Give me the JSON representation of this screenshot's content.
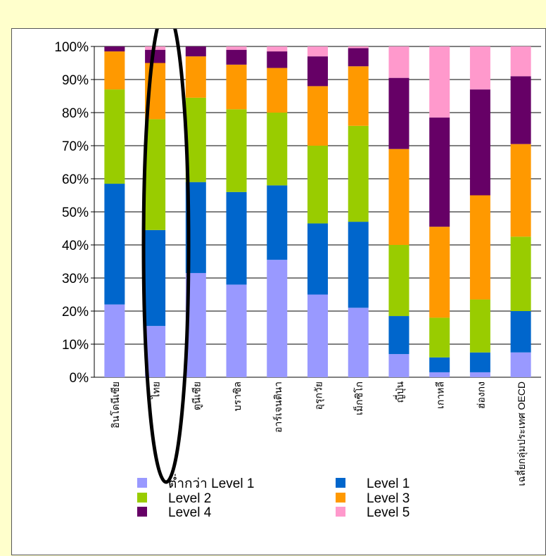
{
  "chart_data": {
    "type": "bar",
    "stacked": true,
    "percent": true,
    "categories": [
      "อินโดนีเซีย",
      "ไทย",
      "ตูนีเซีย",
      "บราซิล",
      "อาร์เจนตินา",
      "อุรุกวัย",
      "เม็กซิโก",
      "ญี่ปุ่น",
      "เกาหลี",
      "ฮ่องกง",
      "เฉลี่ยกลุ่มประเทศ OECD"
    ],
    "yticks": [
      "0%",
      "10%",
      "20%",
      "30%",
      "40%",
      "50%",
      "60%",
      "70%",
      "80%",
      "90%",
      "100%"
    ],
    "ylim": [
      0,
      100
    ],
    "series": [
      {
        "name": "ต่ำกว่า Level 1",
        "color": "#9999ff",
        "values": [
          22,
          15.5,
          31.5,
          28,
          35.5,
          25,
          21,
          7,
          1.5,
          1.5,
          7.5
        ]
      },
      {
        "name": "Level 1",
        "color": "#0066cc",
        "values": [
          36.5,
          29,
          27.5,
          28,
          22.5,
          21.5,
          26,
          11.5,
          4.5,
          6,
          12.5
        ]
      },
      {
        "name": "Level 2",
        "color": "#99cc00",
        "values": [
          28.5,
          33.5,
          25.5,
          25,
          22,
          23.5,
          29,
          21.5,
          12,
          16,
          22.5
        ]
      },
      {
        "name": "Level 3",
        "color": "#ff9900",
        "values": [
          11.5,
          17,
          12.5,
          13.5,
          13.5,
          18,
          18,
          29,
          27.5,
          31.5,
          28
        ]
      },
      {
        "name": "Level 4",
        "color": "#660066",
        "values": [
          1.5,
          4,
          3,
          4.5,
          5,
          9,
          5.5,
          21.5,
          33,
          32,
          20.5
        ]
      },
      {
        "name": "Level 5",
        "color": "#ff99cc",
        "values": [
          0,
          1,
          0,
          1,
          1.5,
          3,
          0.5,
          9.5,
          21.5,
          13,
          9
        ]
      }
    ]
  }
}
